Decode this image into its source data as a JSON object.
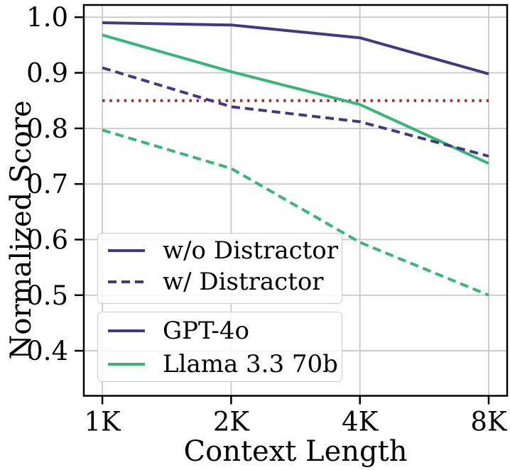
{
  "chart_data": {
    "type": "line",
    "title": "",
    "xlabel": "Context Length",
    "ylabel": "Normalized Score",
    "x_scale": "log2",
    "x": [
      1000,
      2000,
      4000,
      8000
    ],
    "x_tick_labels": [
      "1K",
      "2K",
      "4K",
      "8K"
    ],
    "xlim": [
      905,
      8836
    ],
    "y_ticks": [
      0.4,
      0.5,
      0.6,
      0.7,
      0.8,
      0.9,
      1.0
    ],
    "y_tick_labels": [
      "0.4",
      "0.5",
      "0.6",
      "0.7",
      "0.8",
      "0.9",
      "1.0"
    ],
    "ylim": [
      0.319,
      1.022
    ],
    "grid": true,
    "grid_color": "#c8c8c8",
    "colors": {
      "gpt4o": "#453781",
      "llama": "#35b779",
      "threshold": "#b22222"
    },
    "threshold": {
      "value": 0.85,
      "color": "#b22222",
      "style": "dotted"
    },
    "series": [
      {
        "name": "Llama 3.3 70b w/ Distractor",
        "model": "Llama 3.3 70b",
        "condition": "w/ Distractor",
        "color": "#35b779",
        "style": "dashed",
        "values": [
          0.797,
          0.728,
          0.595,
          0.5
        ]
      },
      {
        "name": "Llama 3.3 70b w/o Distractor",
        "model": "Llama 3.3 70b",
        "condition": "w/o Distractor",
        "color": "#35b779",
        "style": "solid",
        "values": [
          0.968,
          0.902,
          0.843,
          0.737
        ]
      },
      {
        "name": "GPT-4o w/ Distractor",
        "model": "GPT-4o",
        "condition": "w/ Distractor",
        "color": "#453781",
        "style": "dashed",
        "values": [
          0.909,
          0.839,
          0.812,
          0.75
        ]
      },
      {
        "name": "GPT-4o w/o Distractor",
        "model": "GPT-4o",
        "condition": "w/o Distractor",
        "color": "#453781",
        "style": "solid",
        "values": [
          0.99,
          0.986,
          0.963,
          0.898
        ]
      }
    ],
    "legends": {
      "style_legend": {
        "position": "lower-left-upper",
        "items": [
          {
            "label": "w/o Distractor",
            "color": "#453781",
            "style": "solid"
          },
          {
            "label": "w/ Distractor",
            "color": "#453781",
            "style": "dashed"
          }
        ]
      },
      "model_legend": {
        "position": "lower-left-lower",
        "items": [
          {
            "label": "GPT-4o",
            "color": "#453781",
            "style": "solid"
          },
          {
            "label": "Llama 3.3 70b",
            "color": "#35b779",
            "style": "solid"
          }
        ]
      }
    }
  }
}
